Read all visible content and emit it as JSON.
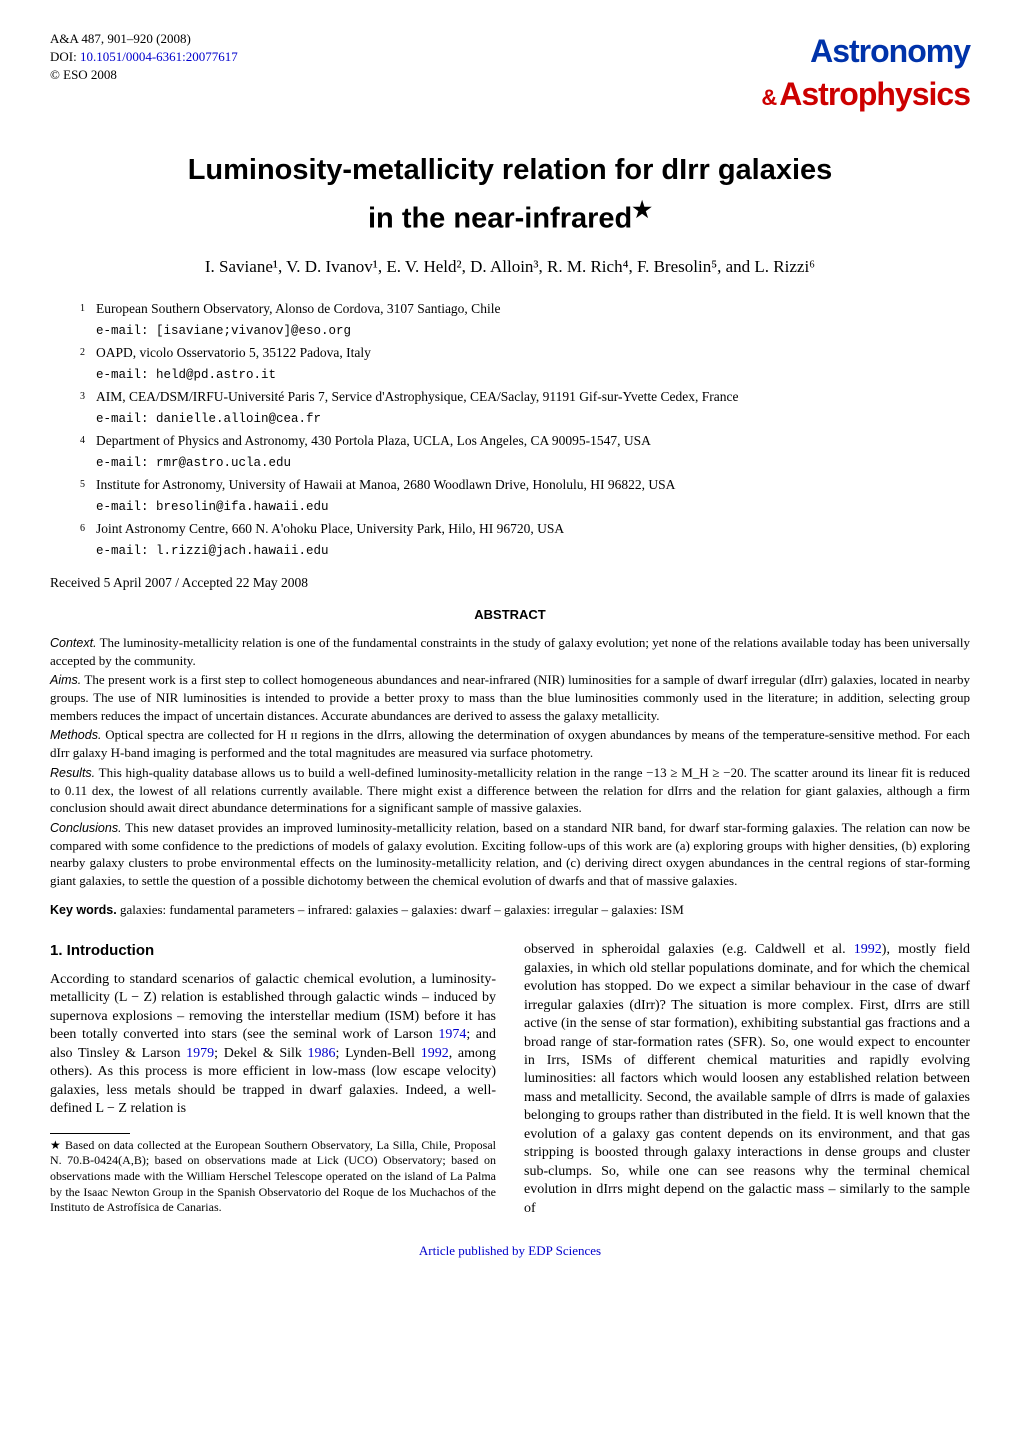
{
  "header": {
    "journal": "A&A 487, 901–920 (2008)",
    "doi_label": "DOI: ",
    "doi_link": "10.1051/0004-6361:20077617",
    "copyright": "© ESO 2008",
    "logo_top": "Astronomy",
    "logo_amp": "&",
    "logo_bottom": "Astrophysics"
  },
  "title": "Luminosity-metallicity relation for dIrr galaxies",
  "subtitle": "in the near-infrared",
  "star": "★",
  "authors": "I. Saviane¹, V. D. Ivanov¹, E. V. Held², D. Alloin³, R. M. Rich⁴, F. Bresolin⁵, and L. Rizzi⁶",
  "affiliations": [
    {
      "num": "1",
      "text": "European Southern Observatory, Alonso de Cordova, 3107 Santiago, Chile",
      "email": "e-mail: [isaviane;vivanov]@eso.org"
    },
    {
      "num": "2",
      "text": "OAPD, vicolo Osservatorio 5, 35122 Padova, Italy",
      "email": "e-mail: held@pd.astro.it"
    },
    {
      "num": "3",
      "text": "AIM, CEA/DSM/IRFU-Université Paris 7, Service d'Astrophysique, CEA/Saclay, 91191 Gif-sur-Yvette Cedex, France",
      "email": "e-mail: danielle.alloin@cea.fr"
    },
    {
      "num": "4",
      "text": "Department of Physics and Astronomy, 430 Portola Plaza, UCLA, Los Angeles, CA 90095-1547, USA",
      "email": "e-mail: rmr@astro.ucla.edu"
    },
    {
      "num": "5",
      "text": "Institute for Astronomy, University of Hawaii at Manoa, 2680 Woodlawn Drive, Honolulu, HI 96822, USA",
      "email": "e-mail: bresolin@ifa.hawaii.edu"
    },
    {
      "num": "6",
      "text": "Joint Astronomy Centre, 660 N. A'ohoku Place, University Park, Hilo, HI 96720, USA",
      "email": "e-mail: l.rizzi@jach.hawaii.edu"
    }
  ],
  "dates": "Received 5 April 2007 / Accepted 22 May 2008",
  "abstract_header": "ABSTRACT",
  "abstract": {
    "context_label": "Context.",
    "context": " The luminosity-metallicity relation is one of the fundamental constraints in the study of galaxy evolution; yet none of the relations available today has been universally accepted by the community.",
    "aims_label": "Aims.",
    "aims": " The present work is a first step to collect homogeneous abundances and near-infrared (NIR) luminosities for a sample of dwarf irregular (dIrr) galaxies, located in nearby groups. The use of NIR luminosities is intended to provide a better proxy to mass than the blue luminosities commonly used in the literature; in addition, selecting group members reduces the impact of uncertain distances. Accurate abundances are derived to assess the galaxy metallicity.",
    "methods_label": "Methods.",
    "methods": " Optical spectra are collected for H ɪɪ regions in the dIrrs, allowing the determination of oxygen abundances by means of the temperature-sensitive method. For each dIrr galaxy H-band imaging is performed and the total magnitudes are measured via surface photometry.",
    "results_label": "Results.",
    "results": " This high-quality database allows us to build a well-defined luminosity-metallicity relation in the range −13 ≥ M_H ≥ −20. The scatter around its linear fit is reduced to 0.11 dex, the lowest of all relations currently available. There might exist a difference between the relation for dIrrs and the relation for giant galaxies, although a firm conclusion should await direct abundance determinations for a significant sample of massive galaxies.",
    "conclusions_label": "Conclusions.",
    "conclusions": " This new dataset provides an improved luminosity-metallicity relation, based on a standard NIR band, for dwarf star-forming galaxies. The relation can now be compared with some confidence to the predictions of models of galaxy evolution. Exciting follow-ups of this work are (a) exploring groups with higher densities, (b) exploring nearby galaxy clusters to probe environmental effects on the luminosity-metallicity relation, and (c) deriving direct oxygen abundances in the central regions of star-forming giant galaxies, to settle the question of a possible dichotomy between the chemical evolution of dwarfs and that of massive galaxies."
  },
  "keywords_label": "Key words.",
  "keywords": " galaxies: fundamental parameters – infrared: galaxies – galaxies: dwarf – galaxies: irregular – galaxies: ISM",
  "section1_heading": "1. Introduction",
  "col1_p1a": "According to standard scenarios of galactic chemical evolution, a luminosity-metallicity (L − Z) relation is established through galactic winds – induced by supernova explosions – removing the interstellar medium (ISM) before it has been totally converted into stars (see the seminal work of Larson ",
  "cite_1974": "1974",
  "col1_p1b": "; and also Tinsley & Larson ",
  "cite_1979": "1979",
  "col1_p1c": "; Dekel & Silk ",
  "cite_1986": "1986",
  "col1_p1d": "; Lynden-Bell ",
  "cite_1992a": "1992",
  "col1_p1e": ", among others). As this process is more efficient in low-mass (low escape velocity) galaxies, less metals should be trapped in dwarf galaxies. Indeed, a well-defined L − Z relation is",
  "footnote": "★ Based on data collected at the European Southern Observatory, La Silla, Chile, Proposal N. 70.B-0424(A,B); based on observations made at Lick (UCO) Observatory; based on observations made with the William Herschel Telescope operated on the island of La Palma by the Isaac Newton Group in the Spanish Observatorio del Roque de los Muchachos of the Instituto de Astrofísica de Canarias.",
  "col2_p1a": "observed in spheroidal galaxies (e.g. Caldwell et al. ",
  "cite_1992b": "1992",
  "col2_p1b": "), mostly field galaxies, in which old stellar populations dominate, and for which the chemical evolution has stopped. Do we expect a similar behaviour in the case of dwarf irregular galaxies (dIrr)? The situation is more complex. First, dIrrs are still active (in the sense of star formation), exhibiting substantial gas fractions and a broad range of star-formation rates (SFR). So, one would expect to encounter in Irrs, ISMs of different chemical maturities and rapidly evolving luminosities: all factors which would loosen any established relation between mass and metallicity. Second, the available sample of dIrrs is made of galaxies belonging to groups rather than distributed in the field. It is well known that the evolution of a galaxy gas content depends on its environment, and that gas stripping is boosted through galaxy interactions in dense groups and cluster sub-clumps. So, while one can see reasons why the terminal chemical evolution in dIrrs might depend on the galactic mass – similarly to the sample of",
  "footer": "Article published by EDP Sciences"
}
